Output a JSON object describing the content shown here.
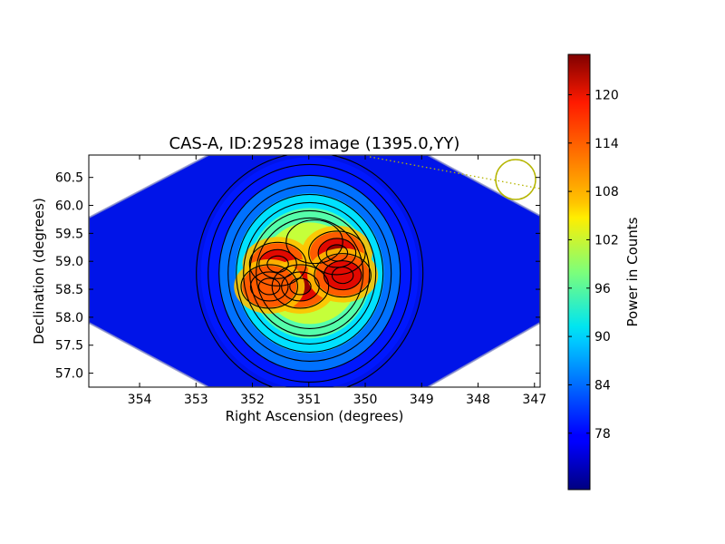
{
  "chart_data": {
    "type": "heatmap",
    "title": "CAS-A, ID:29528 image (1395.0,YY)",
    "xlabel": "Right Ascension (degrees)",
    "ylabel": "Declination (degrees)",
    "xlim": [
      354.9,
      346.9
    ],
    "ylim": [
      56.75,
      60.9
    ],
    "x_ticks": [
      354,
      353,
      352,
      351,
      350,
      349,
      348,
      347
    ],
    "y_ticks": [
      57.0,
      57.5,
      58.0,
      58.5,
      59.0,
      59.5,
      60.0,
      60.5
    ],
    "x_tick_labels": [
      "354",
      "353",
      "352",
      "351",
      "350",
      "349",
      "348",
      "347"
    ],
    "y_tick_labels": [
      "57.0",
      "57.5",
      "58.0",
      "58.5",
      "59.0",
      "59.5",
      "60.0",
      "60.5"
    ],
    "colorbar": {
      "label": "Power in Counts",
      "range": [
        71,
        125
      ],
      "ticks": [
        78,
        84,
        90,
        96,
        102,
        108,
        114,
        120
      ],
      "tick_labels": [
        "78",
        "84",
        "90",
        "96",
        "102",
        "108",
        "114",
        "120"
      ],
      "colormap": "jet"
    },
    "background_level": 75,
    "sources": [
      {
        "ra": 351.55,
        "dec": 58.95,
        "peak": 122
      },
      {
        "ra": 351.15,
        "dec": 58.55,
        "peak": 124
      },
      {
        "ra": 351.7,
        "dec": 58.55,
        "peak": 116
      },
      {
        "ra": 350.5,
        "dec": 59.15,
        "peak": 124
      },
      {
        "ra": 350.4,
        "dec": 58.75,
        "peak": 120
      },
      {
        "ra": 350.9,
        "dec": 59.35,
        "peak": 104
      }
    ],
    "beam_marker": {
      "ra": 347.35,
      "dec": 60.5,
      "color": "#b5b500"
    },
    "grid": false
  }
}
